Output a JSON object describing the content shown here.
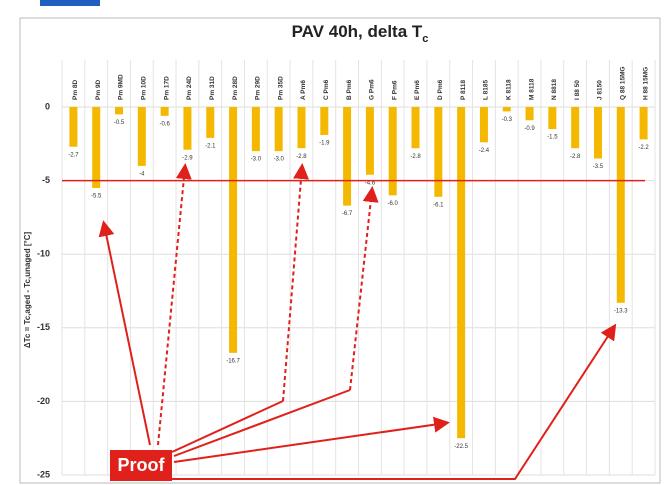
{
  "chart_data": {
    "type": "bar",
    "title": "PAV 40h, delta T",
    "title_subscript": "c",
    "y_label": "ΔTc = Tc,aged - Tc,unaged [°C]",
    "categories": [
      "Pm 8D",
      "Pm 9D",
      "Pm 9MD",
      "Pm 10D",
      "Pm 17D",
      "Pm 24D",
      "Pm 31D",
      "Pm 28D",
      "Pm 29D",
      "Pm 35D",
      "A Pm6",
      "C Pm6",
      "B Pm6",
      "G Pm6",
      "F Pm6",
      "E Pm6",
      "D Pm6",
      "P 8118",
      "L 8185",
      "K 8118",
      "M 8118",
      "N 8818",
      "I 88 50",
      "J 8150",
      "Q 88 15MG",
      "H 88 15MG"
    ],
    "values": [
      -2.7,
      -5.5,
      -0.5,
      -4,
      -0.6,
      -2.9,
      -2.1,
      -16.7,
      -3.0,
      -3.0,
      -2.8,
      -1.9,
      -6.7,
      -4.6,
      -6.0,
      -2.8,
      -6.1,
      -22.5,
      -2.4,
      -0.3,
      -0.9,
      -1.5,
      -2.8,
      -3.5,
      -13.3,
      -2.2
    ],
    "value_labels": [
      "-2.7",
      "-5.5",
      "-0.5",
      "-4",
      "-0.6",
      "-2.9",
      "-2.1",
      "-16.7",
      "-3.0",
      "-3.0",
      "-2.8",
      "-1.9",
      "-6.7",
      "-4.6",
      "-6.0",
      "-2.8",
      "-6.1",
      "-22.5",
      "-2.4",
      "-0.3",
      "-0.9",
      "-1.5",
      "-2.8",
      "-3.5",
      "-13.3",
      "-2.2"
    ],
    "color": "#f5b800",
    "ylim": [
      -25,
      0
    ],
    "yticks": [
      0,
      -5,
      -10,
      -15,
      -20,
      -25
    ],
    "grid": true,
    "reference_line": -5,
    "reference_color": "#e0201a",
    "annotation": "Proof"
  }
}
